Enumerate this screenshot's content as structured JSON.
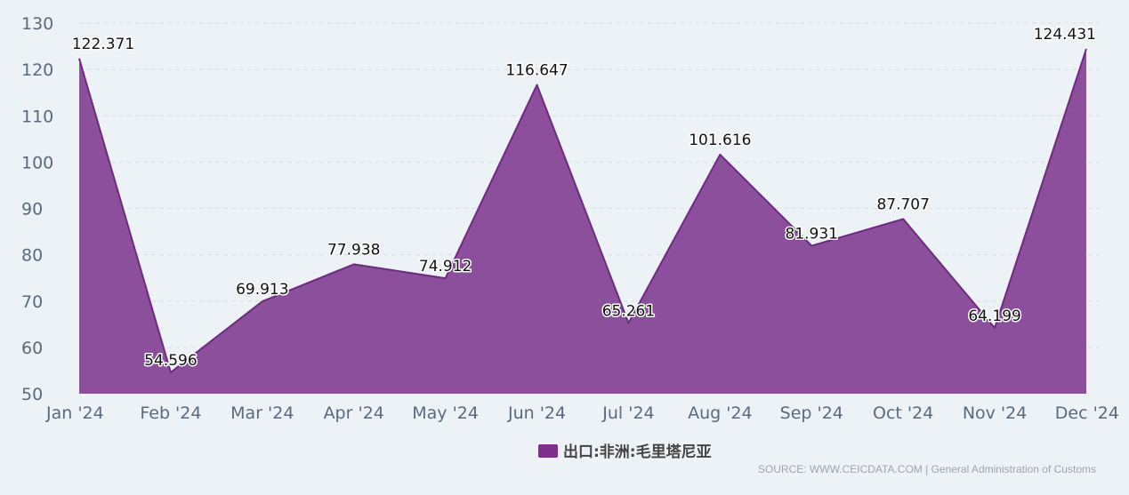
{
  "chart_data": {
    "type": "area",
    "categories": [
      "Jan '24",
      "Feb '24",
      "Mar '24",
      "Apr '24",
      "May '24",
      "Jun '24",
      "Jul '24",
      "Aug '24",
      "Sep '24",
      "Oct '24",
      "Nov '24",
      "Dec '24"
    ],
    "series": [
      {
        "name": "出口:非洲:毛里塔尼亚",
        "values": [
          122.371,
          54.596,
          69.913,
          77.938,
          74.912,
          116.647,
          65.261,
          101.616,
          81.931,
          87.707,
          64.199,
          124.431
        ],
        "labels": [
          "122.371",
          "54.596",
          "69.913",
          "77.938",
          "74.912",
          "116.647",
          "65.261",
          "101.616",
          "81.931",
          "87.707",
          "64.199",
          "124.431"
        ]
      }
    ],
    "ylim": [
      50,
      130
    ],
    "yticks": [
      "50",
      "60",
      "70",
      "80",
      "90",
      "100",
      "110",
      "120",
      "130"
    ],
    "grid": true,
    "legend_position": "bottom-center",
    "colors": {
      "fill": "#8b4f9c",
      "line": "#6d2b7f",
      "legend": "#7e2f8e"
    }
  },
  "source": "SOURCE: WWW.CEICDATA.COM | General Administration of Customs"
}
